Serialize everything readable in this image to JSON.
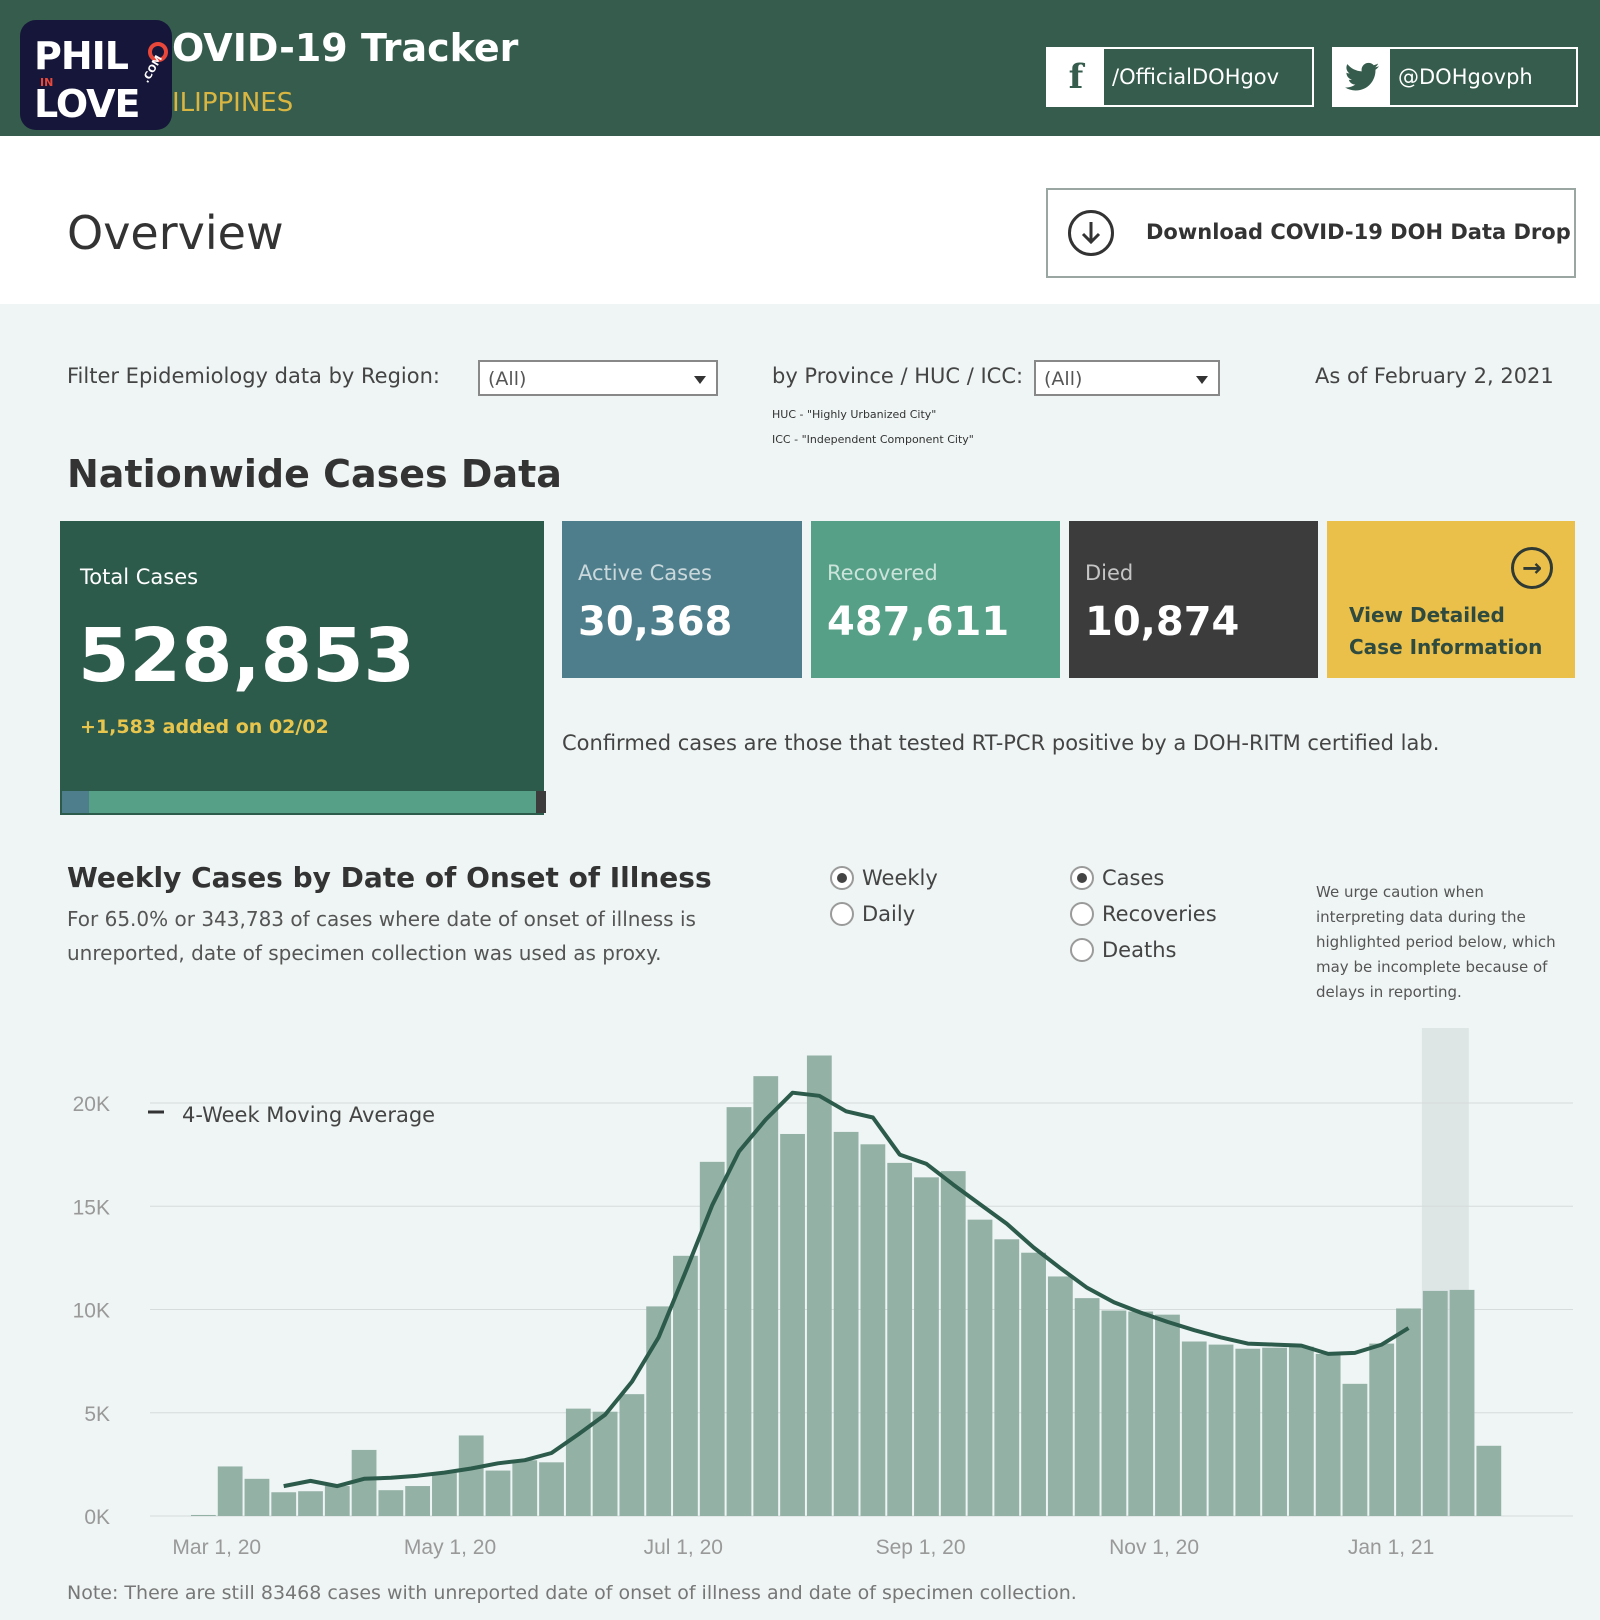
{
  "header": {
    "logo_line1": "PHIL",
    "logo_in": "IN",
    "logo_line2": "LOVE",
    "logo_com": ".COM",
    "title": "OVID-19 Tracker",
    "subtitle": "ILIPPINES",
    "facebook": "/OfficialDOHgov",
    "twitter": "@DOHgovph",
    "facebook_icon": "f",
    "twitter_icon": "twitter-bird"
  },
  "overview": {
    "title": "Overview",
    "download_label": "Download COVID-19 DOH Data Drop"
  },
  "filters": {
    "region_label": "Filter Epidemiology data by Region:",
    "region_value": "(All)",
    "province_label": "by Province / HUC / ICC:",
    "province_value": "(All)",
    "huc_note": "HUC - \"Highly Urbanized City\"",
    "icc_note": "ICC - \"Independent Component City\"",
    "as_of": "As of February 2, 2021"
  },
  "nationwide": {
    "title": "Nationwide Cases Data",
    "total_label": "Total Cases",
    "total_value": "528,853",
    "added": "+1,583 added on 02/02",
    "active_label": "Active Cases",
    "active_value": "30,368",
    "recovered_label": "Recovered",
    "recovered_value": "487,611",
    "died_label": "Died",
    "died_value": "10,874",
    "detail_line1": "View Detailed",
    "detail_line2": "Case Information",
    "composition": {
      "active": 30368,
      "recovered": 487611,
      "died": 10874
    },
    "confirmed_note": "Confirmed cases are those that tested RT-PCR positive by a DOH-RITM certified lab."
  },
  "weekly": {
    "title": "Weekly Cases by Date of Onset of Illness",
    "desc_line1": "For 65.0% or 343,783 of cases where date of onset of illness is",
    "desc_line2": "unreported, date of specimen collection was used as proxy.",
    "period_options": [
      {
        "label": "Weekly",
        "selected": true
      },
      {
        "label": "Daily",
        "selected": false
      }
    ],
    "metric_options": [
      {
        "label": "Cases",
        "selected": true
      },
      {
        "label": "Recoveries",
        "selected": false
      },
      {
        "label": "Deaths",
        "selected": false
      }
    ],
    "caution_lines": [
      "We urge caution when",
      "interpreting data during the",
      "highlighted period below, which",
      "may be incomplete because of",
      "delays in reporting."
    ],
    "footnote": "Note: There are still 83468 cases with unreported date of onset of illness and date of specimen collection."
  },
  "colors": {
    "header": "#355c4c",
    "total": "#2c5a4b",
    "active": "#4e7e8b",
    "recovered": "#55a086",
    "died": "#3c3c3c",
    "detail": "#eac04a",
    "bar": "#94b1a6",
    "line": "#2c5a4b",
    "highlight": "#dde5e5"
  },
  "chart_data": {
    "type": "bar",
    "x_start": "2020-02-23",
    "x_step_days": 7,
    "x_ticks": [
      "Mar 1, 20",
      "May 1, 20",
      "Jul 1, 20",
      "Sep 1, 20",
      "Nov 1, 20",
      "Jan 1, 21"
    ],
    "y_ticks": [
      "0K",
      "5K",
      "10K",
      "15K",
      "20K"
    ],
    "ylim": [
      0,
      22500
    ],
    "legend": "4-Week Moving Average",
    "legend_position": "top-left",
    "grid": true,
    "highlighted_last_weeks": 2,
    "series": [
      {
        "type": "bar",
        "values": [
          50,
          2400,
          1800,
          1150,
          1200,
          1450,
          3200,
          1250,
          1450,
          2100,
          3900,
          2200,
          2700,
          2600,
          5200,
          5050,
          5900,
          10150,
          12600,
          17150,
          19800,
          21300,
          18500,
          22300,
          18600,
          18000,
          17100,
          16400,
          16700,
          14350,
          13400,
          12750,
          11600,
          10550,
          9950,
          9900,
          9750,
          8450,
          8300,
          8100,
          8150,
          8200,
          7850,
          6400,
          8350,
          10050,
          10900,
          10950,
          3400
        ]
      },
      {
        "type": "line",
        "name": "4-Week Moving Average",
        "values": [
          null,
          null,
          null,
          1450,
          1700,
          1450,
          1800,
          1850,
          1950,
          2100,
          2300,
          2550,
          2700,
          3050,
          3950,
          4900,
          6500,
          8650,
          11800,
          15050,
          17650,
          19200,
          20500,
          20350,
          19600,
          19300,
          17500,
          17050,
          16050,
          15100,
          14150,
          13000,
          12000,
          11050,
          10350,
          9850,
          9400,
          9000,
          8650,
          8350,
          8300,
          8250,
          7850,
          7900,
          8300,
          9100,
          null,
          null,
          null
        ]
      }
    ]
  }
}
